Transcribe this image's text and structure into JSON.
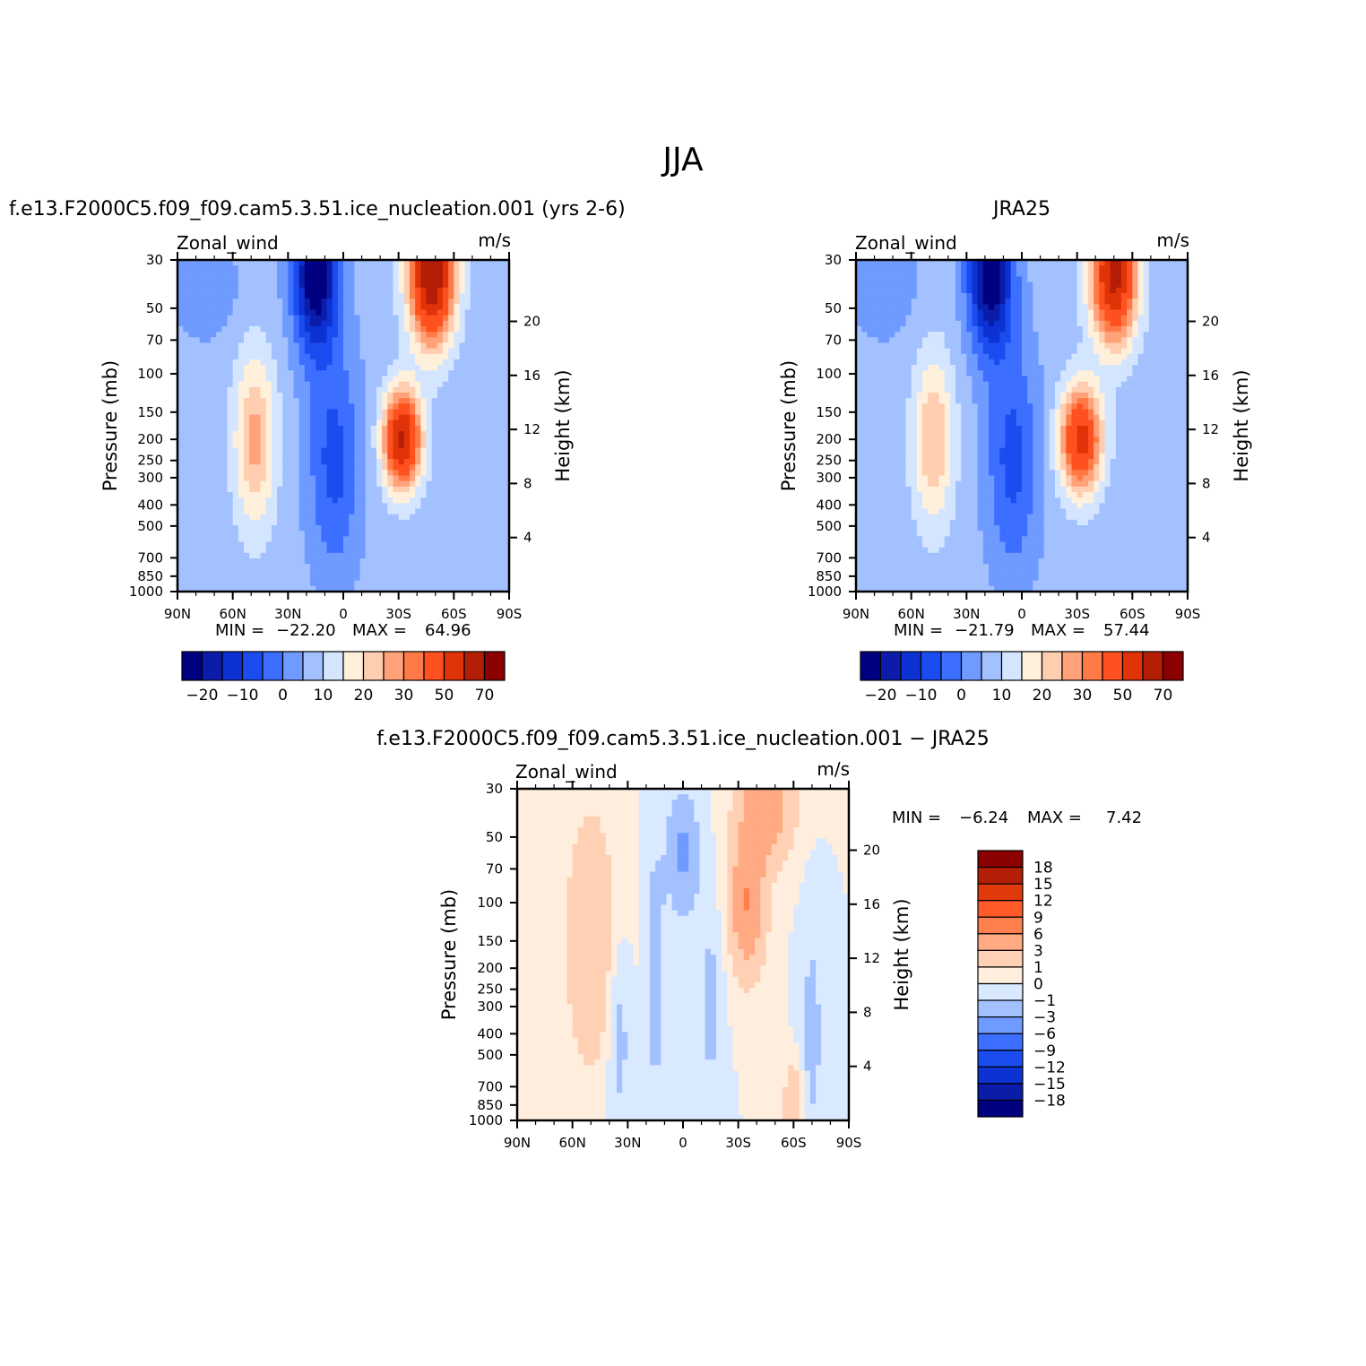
{
  "title": "JJA",
  "colors": {
    "main": [
      "#000080",
      "#0b1da8",
      "#0c32d4",
      "#1a4cf0",
      "#3c6fff",
      "#6f9aff",
      "#a3c1ff",
      "#d4e6ff",
      "#fff0dc",
      "#ffcdb0",
      "#ffa27a",
      "#ff7a46",
      "#ff5020",
      "#e03408",
      "#b41d06",
      "#8b0000"
    ],
    "diff": [
      "#000080",
      "#0b1da8",
      "#0c32d4",
      "#1a4cf0",
      "#3c6fff",
      "#6f9aff",
      "#a3c1ff",
      "#d9e9ff",
      "#ffeede",
      "#ffd0b4",
      "#ffaa82",
      "#ff7f4e",
      "#ff5a28",
      "#e03a0c",
      "#b41d06",
      "#8b0000"
    ]
  },
  "chart_data": [
    {
      "type": "heatmap",
      "title": "f.e13.F2000C5.f09_f09.cam5.3.51.ice_nucleation.001 (yrs 2-6)",
      "variable": "Zonal_wind",
      "units": "m/s",
      "ylabel": "Pressure (mb)",
      "ylabel_right": "Height (km)",
      "x_ticks": [
        "90N",
        "60N",
        "30N",
        "0",
        "30S",
        "60S",
        "90S"
      ],
      "xlim": [
        90,
        -90
      ],
      "y_ticks": [
        "30",
        "50",
        "70",
        "100",
        "150",
        "200",
        "250",
        "300",
        "400",
        "500",
        "700",
        "850",
        "1000"
      ],
      "ylim": [
        1000,
        30
      ],
      "height_ticks": [
        "4",
        "8",
        "12",
        "16",
        "20"
      ],
      "min_label": "MIN =",
      "min_value": "−22.20",
      "max_label": "MAX =",
      "max_value": "64.96",
      "colorbar_labels": [
        "−20",
        "−10",
        "0",
        "10",
        "20",
        "30",
        "50",
        "70"
      ],
      "field": {
        "base": 2,
        "scale": 1.0,
        "features": [
          {
            "lat": -32,
            "p": 200,
            "amp": 50,
            "wlat": 10,
            "wlp": 0.5
          },
          {
            "lat": -48,
            "p": 35,
            "amp": 58,
            "wlat": 12,
            "wlp": 0.7
          },
          {
            "lat": 15,
            "p": 35,
            "amp": -33,
            "wlat": 12,
            "wlp": 0.8
          },
          {
            "lat": 5,
            "p": 250,
            "amp": -14,
            "wlat": 14,
            "wlp": 1.2
          },
          {
            "lat": 48,
            "p": 200,
            "amp": 20,
            "wlat": 11,
            "wlp": 0.9
          },
          {
            "lat": 75,
            "p": 40,
            "amp": -5,
            "wlat": 20,
            "wlp": 0.6
          }
        ]
      }
    },
    {
      "type": "heatmap",
      "title": "JRA25",
      "variable": "Zonal_wind",
      "units": "m/s",
      "ylabel": "Pressure (mb)",
      "ylabel_right": "Height (km)",
      "x_ticks": [
        "90N",
        "60N",
        "30N",
        "0",
        "30S",
        "60S",
        "90S"
      ],
      "xlim": [
        90,
        -90
      ],
      "y_ticks": [
        "30",
        "50",
        "70",
        "100",
        "150",
        "200",
        "250",
        "300",
        "400",
        "500",
        "700",
        "850",
        "1000"
      ],
      "ylim": [
        1000,
        30
      ],
      "height_ticks": [
        "4",
        "8",
        "12",
        "16",
        "20"
      ],
      "min_label": "MIN =",
      "min_value": "−21.79",
      "max_label": "MAX =",
      "max_value": "57.44",
      "colorbar_labels": [
        "−20",
        "−10",
        "0",
        "10",
        "20",
        "30",
        "50",
        "70"
      ],
      "field": {
        "base": 2,
        "scale": 1.0,
        "features": [
          {
            "lat": -32,
            "p": 200,
            "amp": 42,
            "wlat": 11,
            "wlp": 0.55
          },
          {
            "lat": -50,
            "p": 35,
            "amp": 52,
            "wlat": 12,
            "wlp": 0.7
          },
          {
            "lat": 17,
            "p": 35,
            "amp": -32,
            "wlat": 12,
            "wlp": 0.8
          },
          {
            "lat": 5,
            "p": 250,
            "amp": -14,
            "wlat": 14,
            "wlp": 1.2
          },
          {
            "lat": 48,
            "p": 200,
            "amp": 18,
            "wlat": 11,
            "wlp": 0.9
          },
          {
            "lat": 75,
            "p": 40,
            "amp": -5,
            "wlat": 20,
            "wlp": 0.6
          }
        ]
      }
    },
    {
      "type": "heatmap",
      "title": "f.e13.F2000C5.f09_f09.cam5.3.51.ice_nucleation.001 − JRA25",
      "variable": "Zonal_wind",
      "units": "m/s",
      "ylabel": "Pressure (mb)",
      "ylabel_right": "Height (km)",
      "x_ticks": [
        "90N",
        "60N",
        "30N",
        "0",
        "30S",
        "60S",
        "90S"
      ],
      "xlim": [
        90,
        -90
      ],
      "y_ticks": [
        "30",
        "50",
        "70",
        "100",
        "150",
        "200",
        "250",
        "300",
        "400",
        "500",
        "700",
        "850",
        "1000"
      ],
      "ylim": [
        1000,
        30
      ],
      "height_ticks": [
        "4",
        "8",
        "12",
        "16",
        "20"
      ],
      "min_label": "MIN =",
      "min_value": "−6.24",
      "max_label": "MAX =",
      "max_value": "7.42",
      "colorbar_labels": [
        "18",
        "15",
        "12",
        "9",
        "6",
        "3",
        "1",
        "0",
        "−1",
        "−3",
        "−6",
        "−9",
        "−12",
        "−15",
        "−18"
      ],
      "field": {
        "base": 0,
        "scale": 1.0,
        "features": [
          {
            "lat": 50,
            "p": 150,
            "amp": 2.5,
            "wlat": 14,
            "wlp": 1.4
          },
          {
            "lat": -35,
            "p": 100,
            "amp": 6,
            "wlat": 9,
            "wlp": 0.7
          },
          {
            "lat": -45,
            "p": 35,
            "amp": 5,
            "wlat": 14,
            "wlp": 0.6
          },
          {
            "lat": 0,
            "p": 60,
            "amp": -3.5,
            "wlat": 8,
            "wlp": 0.6
          },
          {
            "lat": 35,
            "p": 400,
            "amp": -1.8,
            "wlat": 6,
            "wlp": 1.0
          },
          {
            "lat": 15,
            "p": 200,
            "amp": -2.2,
            "wlat": 5,
            "wlp": 1.2
          },
          {
            "lat": -15,
            "p": 300,
            "amp": -1.5,
            "wlat": 6,
            "wlp": 1.0
          },
          {
            "lat": -70,
            "p": 400,
            "amp": -1.5,
            "wlat": 6,
            "wlp": 1.2
          },
          {
            "lat": -60,
            "p": 850,
            "amp": 3,
            "wlat": 5,
            "wlp": 0.4
          }
        ]
      }
    }
  ]
}
